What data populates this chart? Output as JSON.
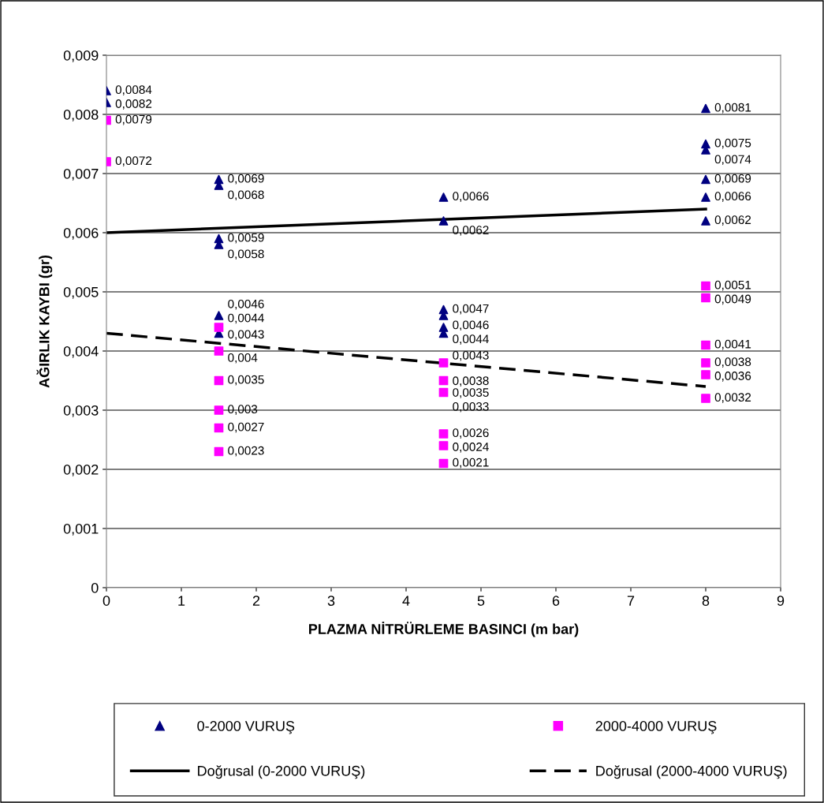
{
  "chart_data": {
    "type": "scatter",
    "xlabel": "PLAZMA NİTRÜRLEME BASINCI (m bar)",
    "ylabel": "AĞIRLIK KAYBI (gr)",
    "xlim": [
      0,
      9
    ],
    "xticks": [
      0,
      1,
      2,
      3,
      4,
      5,
      6,
      7,
      8,
      9
    ],
    "ylim": [
      0,
      0.009
    ],
    "yticks": [
      {
        "value": 0,
        "label": "0"
      },
      {
        "value": 0.001,
        "label": "0,001"
      },
      {
        "value": 0.002,
        "label": "0,002"
      },
      {
        "value": 0.003,
        "label": "0,003"
      },
      {
        "value": 0.004,
        "label": "0,004"
      },
      {
        "value": 0.005,
        "label": "0,005"
      },
      {
        "value": 0.006,
        "label": "0,006"
      },
      {
        "value": 0.007,
        "label": "0,007"
      },
      {
        "value": 0.008,
        "label": "0,008"
      },
      {
        "value": 0.009,
        "label": "0,009"
      }
    ],
    "grid": "y",
    "legend": "bottom",
    "series": [
      {
        "name": "0-2000 VURUŞ",
        "marker": "triangle",
        "color": "#000080",
        "x": [
          0,
          0,
          1.5,
          1.5,
          1.5,
          1.5,
          1.5,
          1.5,
          4.5,
          4.5,
          4.5,
          4.5,
          4.5,
          4.5,
          8,
          8,
          8,
          8,
          8,
          8
        ],
        "values": [
          0.0084,
          0.0082,
          0.0069,
          0.0068,
          0.0059,
          0.0058,
          0.0046,
          0.0043,
          0.0066,
          0.0062,
          0.0047,
          0.0046,
          0.0044,
          0.0043,
          0.0081,
          0.0075,
          0.0074,
          0.0069,
          0.0066,
          0.0062
        ],
        "value_labels": [
          "0,0084",
          "0,0082",
          "0,0069",
          "0,0068",
          "0,0059",
          "0,0058",
          "0,0046",
          "0,0043",
          "0,0066",
          "0,0062",
          "0,0047",
          "0,0046",
          "0,0044",
          "0,0043",
          "0,0081",
          "0,0075",
          "0,0074",
          "0,0069",
          "0,0066",
          "0,0062"
        ]
      },
      {
        "name": "2000-4000 VURUŞ",
        "marker": "square",
        "color": "#ff00ff",
        "x": [
          0,
          0,
          1.5,
          1.5,
          1.5,
          1.5,
          1.5,
          1.5,
          4.5,
          4.5,
          4.5,
          4.5,
          4.5,
          4.5,
          8,
          8,
          8,
          8,
          8,
          8
        ],
        "values": [
          0.0079,
          0.0072,
          0.0044,
          0.004,
          0.0035,
          0.003,
          0.0027,
          0.0023,
          0.0038,
          0.0035,
          0.0033,
          0.0026,
          0.0024,
          0.0021,
          0.0051,
          0.0049,
          0.0041,
          0.0038,
          0.0036,
          0.0032
        ],
        "value_labels": [
          "0,0079",
          "0,0072",
          "0,0044",
          "0,004",
          "0,0035",
          "0,003",
          "0,0027",
          "0,0023",
          "0,0038",
          "0,0035",
          "0,0033",
          "0,0026",
          "0,0024",
          "0,0021",
          "0,0051",
          "0,0049",
          "0,0041",
          "0,0038",
          "0,0036",
          "0,0032"
        ]
      },
      {
        "name": "Doğrusal (0-2000 VURUŞ)",
        "type": "line",
        "line_style": "solid",
        "color": "#000000",
        "x": [
          0,
          8
        ],
        "values": [
          0.006,
          0.0064
        ]
      },
      {
        "name": "Doğrusal (2000-4000 VURUŞ)",
        "type": "line",
        "line_style": "dashed",
        "color": "#000000",
        "x": [
          0,
          8
        ],
        "values": [
          0.0043,
          0.0034
        ]
      }
    ]
  }
}
